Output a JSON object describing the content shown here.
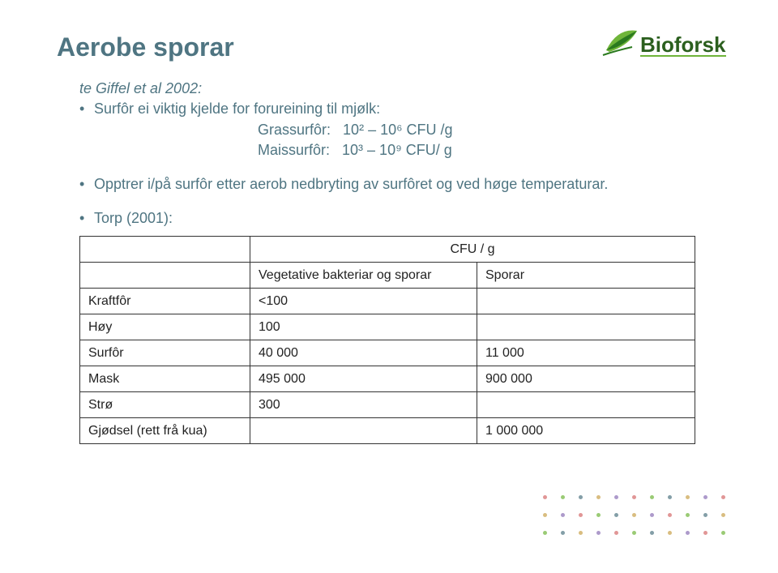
{
  "title": "Aerobe sporar",
  "ref": "te Giffel et al 2002:",
  "b1": "Surfôr ei viktig kjelde for forureining til mjølk:",
  "lineA_label": "Grassurfôr:",
  "lineA_val": "10² – 10⁶ CFU /g",
  "lineB_label": "Maissurfôr:",
  "lineB_val": "10³ – 10⁹ CFU/ g",
  "b2": "Opptrer i/på surfôr etter aerob nedbryting av surfôret og ved høge temperaturar.",
  "b3": "Torp (2001):",
  "table": {
    "header_span": "CFU / g",
    "col1": "Vegetative bakteriar og sporar",
    "col2": "Sporar",
    "rows": [
      {
        "label": "Kraftfôr",
        "c1": "<100",
        "c2": ""
      },
      {
        "label": "Høy",
        "c1": "100",
        "c2": ""
      },
      {
        "label": "Surfôr",
        "c1": "40 000",
        "c2": "11 000"
      },
      {
        "label": "Mask",
        "c1": "495 000",
        "c2": "900 000"
      },
      {
        "label": "Strø",
        "c1": "300",
        "c2": ""
      },
      {
        "label": "Gjødsel (rett frå kua)",
        "c1": "",
        "c2": "1 000 000"
      }
    ]
  },
  "logo": {
    "text": "Bioforsk",
    "text_color": "#2b5f1e",
    "leaf_color": "#6fb53a",
    "leaf_dark": "#2b7a1f"
  },
  "title_color": "#4f7582",
  "body_color": "#4f7582",
  "table_border": "#333333",
  "dots": {
    "colors": [
      "#d46a6a",
      "#6fb53a",
      "#4f7582",
      "#c9a14a",
      "#8a6fb5"
    ]
  }
}
